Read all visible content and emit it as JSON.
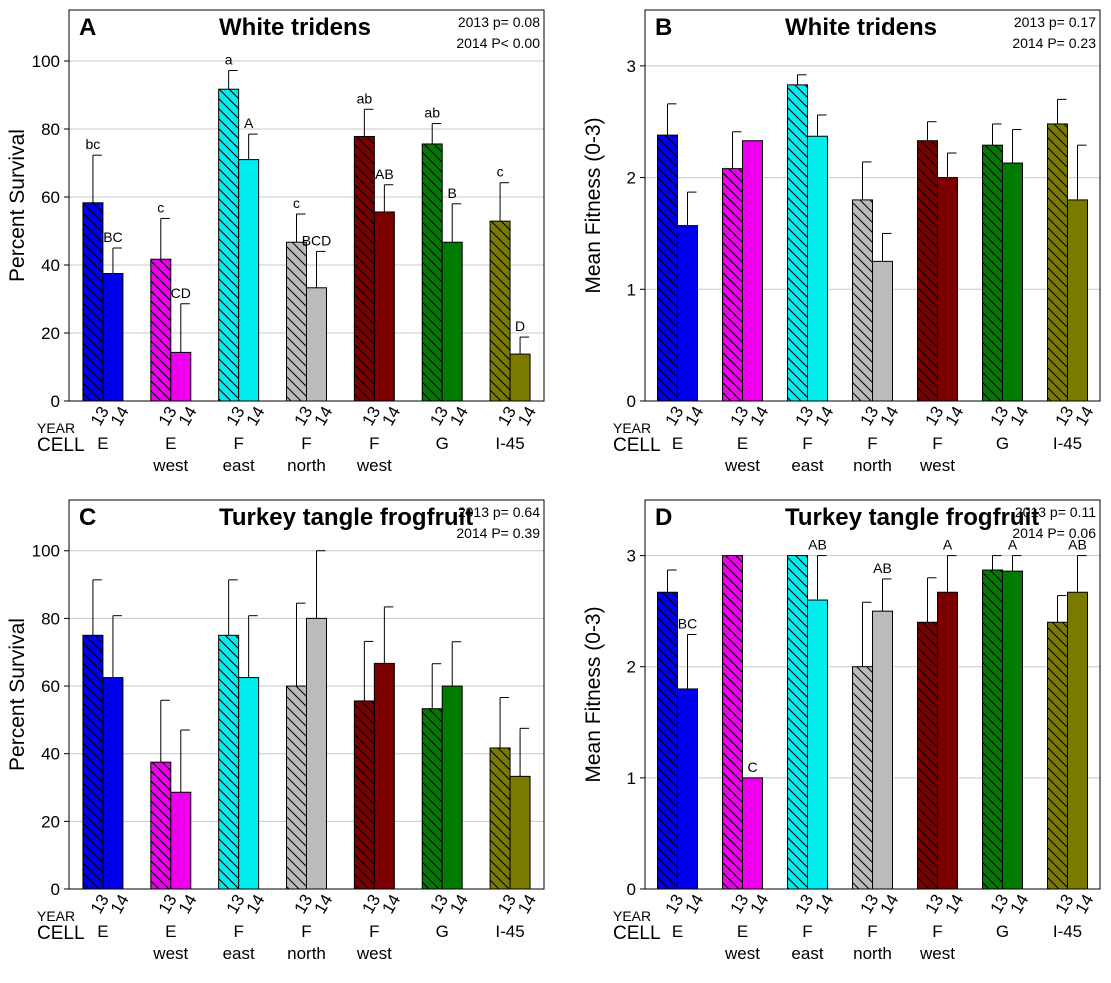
{
  "colors": {
    "E": "#0000ee",
    "E west": "#ee00ee",
    "F east": "#00eeee",
    "F north": "#bbbbbb",
    "F west": "#7a0000",
    "G": "#007a00",
    "I-45": "#7a7a00"
  },
  "chart_data": [
    {
      "type": "bar",
      "panel": "A",
      "title": "White tridens",
      "stats": [
        "2013 p= 0.08",
        "2014 P< 0.00"
      ],
      "ylabel": "Percent Survival",
      "ylim": [
        0,
        115
      ],
      "yticks": [
        0,
        20,
        40,
        60,
        80,
        100
      ],
      "grid": true,
      "year_row_label": "YEAR",
      "cell_row_label": "CELL",
      "year_labels": [
        "13",
        "14"
      ],
      "categories": [
        {
          "cell": [
            "E"
          ],
          "values": [
            58.3,
            37.5
          ],
          "errors": [
            14,
            7.5
          ],
          "letters": [
            "bc",
            "BC"
          ]
        },
        {
          "cell": [
            "E",
            "west"
          ],
          "values": [
            41.7,
            14.3
          ],
          "errors": [
            12,
            14.3
          ],
          "letters": [
            "c",
            "CD"
          ]
        },
        {
          "cell": [
            "F",
            "east"
          ],
          "values": [
            91.7,
            71.0
          ],
          "errors": [
            5.5,
            7.5
          ],
          "letters": [
            "a",
            "A"
          ]
        },
        {
          "cell": [
            "F",
            "north"
          ],
          "values": [
            46.7,
            33.3
          ],
          "errors": [
            8.3,
            10.7
          ],
          "letters": [
            "c",
            "BCD"
          ]
        },
        {
          "cell": [
            "F",
            "west"
          ],
          "values": [
            77.8,
            55.6
          ],
          "errors": [
            8,
            8
          ],
          "letters": [
            "ab",
            "AB"
          ]
        },
        {
          "cell": [
            "G"
          ],
          "values": [
            75.6,
            46.7
          ],
          "errors": [
            6,
            11.3
          ],
          "letters": [
            "ab",
            "B"
          ]
        },
        {
          "cell": [
            "I-45"
          ],
          "values": [
            52.9,
            13.8
          ],
          "errors": [
            11.3,
            5
          ],
          "letters": [
            "c",
            "D"
          ]
        }
      ]
    },
    {
      "type": "bar",
      "panel": "B",
      "title": "White tridens",
      "stats": [
        "2013 p= 0.17",
        "2014 P= 0.23"
      ],
      "ylabel": "Mean Fitness (0-3)",
      "ylim": [
        0,
        3.5
      ],
      "yticks": [
        0,
        1,
        2,
        3
      ],
      "grid": true,
      "year_row_label": "YEAR",
      "cell_row_label": "CELL",
      "year_labels": [
        "13",
        "14"
      ],
      "categories": [
        {
          "cell": [
            "E"
          ],
          "values": [
            2.38,
            1.57
          ],
          "errors": [
            0.28,
            0.3
          ],
          "letters": [
            "",
            ""
          ]
        },
        {
          "cell": [
            "E",
            "west"
          ],
          "values": [
            2.08,
            2.33
          ],
          "errors": [
            0.33,
            0
          ],
          "letters": [
            "",
            ""
          ]
        },
        {
          "cell": [
            "F",
            "east"
          ],
          "values": [
            2.83,
            2.37
          ],
          "errors": [
            0.09,
            0.19
          ],
          "letters": [
            "",
            ""
          ]
        },
        {
          "cell": [
            "F",
            "north"
          ],
          "values": [
            1.8,
            1.25
          ],
          "errors": [
            0.34,
            0.25
          ],
          "letters": [
            "",
            ""
          ]
        },
        {
          "cell": [
            "F",
            "west"
          ],
          "values": [
            2.33,
            2.0
          ],
          "errors": [
            0.17,
            0.22
          ],
          "letters": [
            "",
            ""
          ]
        },
        {
          "cell": [
            "G"
          ],
          "values": [
            2.29,
            2.13
          ],
          "errors": [
            0.19,
            0.3
          ],
          "letters": [
            "",
            ""
          ]
        },
        {
          "cell": [
            "I-45"
          ],
          "values": [
            2.48,
            1.8
          ],
          "errors": [
            0.22,
            0.49
          ],
          "letters": [
            "",
            ""
          ]
        }
      ]
    },
    {
      "type": "bar",
      "panel": "C",
      "title": "Turkey tangle frogfruit",
      "stats": [
        "2013 p= 0.64",
        "2014 P= 0.39"
      ],
      "ylabel": "Percent Survival",
      "ylim": [
        0,
        115
      ],
      "yticks": [
        0,
        20,
        40,
        60,
        80,
        100
      ],
      "grid": true,
      "year_row_label": "YEAR",
      "cell_row_label": "CELL",
      "year_labels": [
        "13",
        "14"
      ],
      "categories": [
        {
          "cell": [
            "E"
          ],
          "values": [
            75.0,
            62.5
          ],
          "errors": [
            16.4,
            18.3
          ],
          "letters": [
            "",
            ""
          ]
        },
        {
          "cell": [
            "E",
            "west"
          ],
          "values": [
            37.5,
            28.6
          ],
          "errors": [
            18.3,
            18.4
          ],
          "letters": [
            "",
            ""
          ]
        },
        {
          "cell": [
            "F",
            "east"
          ],
          "values": [
            75.0,
            62.5
          ],
          "errors": [
            16.4,
            18.3
          ],
          "letters": [
            "",
            ""
          ]
        },
        {
          "cell": [
            "F",
            "north"
          ],
          "values": [
            60.0,
            80.0
          ],
          "errors": [
            24.5,
            20
          ],
          "letters": [
            "",
            ""
          ]
        },
        {
          "cell": [
            "F",
            "west"
          ],
          "values": [
            55.6,
            66.7
          ],
          "errors": [
            17.6,
            16.7
          ],
          "letters": [
            "",
            ""
          ]
        },
        {
          "cell": [
            "G"
          ],
          "values": [
            53.3,
            60.0
          ],
          "errors": [
            13.3,
            13.1
          ],
          "letters": [
            "",
            ""
          ]
        },
        {
          "cell": [
            "I-45"
          ],
          "values": [
            41.7,
            33.3
          ],
          "errors": [
            14.9,
            14.2
          ],
          "letters": [
            "",
            ""
          ]
        }
      ]
    },
    {
      "type": "bar",
      "panel": "D",
      "title": "Turkey tangle frogfruit",
      "stats": [
        "2013 p= 0.11",
        "2014 P= 0.06"
      ],
      "ylabel": "Mean Fitness (0-3)",
      "ylim": [
        0,
        3.5
      ],
      "yticks": [
        0,
        1,
        2,
        3
      ],
      "grid": true,
      "year_row_label": "YEAR",
      "cell_row_label": "CELL",
      "year_labels": [
        "13",
        "14"
      ],
      "categories": [
        {
          "cell": [
            "E"
          ],
          "values": [
            2.67,
            1.8
          ],
          "errors": [
            0.2,
            0.49
          ],
          "letters": [
            "",
            "BC"
          ]
        },
        {
          "cell": [
            "E",
            "west"
          ],
          "values": [
            3.0,
            1.0
          ],
          "errors": [
            0,
            0
          ],
          "letters": [
            "",
            "C"
          ]
        },
        {
          "cell": [
            "F",
            "east"
          ],
          "values": [
            3.0,
            2.6
          ],
          "errors": [
            0,
            0.4
          ],
          "letters": [
            "",
            "AB"
          ]
        },
        {
          "cell": [
            "F",
            "north"
          ],
          "values": [
            2.0,
            2.5
          ],
          "errors": [
            0.58,
            0.29
          ],
          "letters": [
            "",
            "AB"
          ]
        },
        {
          "cell": [
            "F",
            "west"
          ],
          "values": [
            2.4,
            2.67
          ],
          "errors": [
            0.4,
            0.33
          ],
          "letters": [
            "",
            "A"
          ]
        },
        {
          "cell": [
            "G"
          ],
          "values": [
            2.87,
            2.86
          ],
          "errors": [
            0.13,
            0.14
          ],
          "letters": [
            "",
            "A"
          ]
        },
        {
          "cell": [
            "I-45"
          ],
          "values": [
            2.4,
            2.67
          ],
          "errors": [
            0.24,
            0.33
          ],
          "letters": [
            "",
            "AB"
          ]
        }
      ]
    }
  ]
}
